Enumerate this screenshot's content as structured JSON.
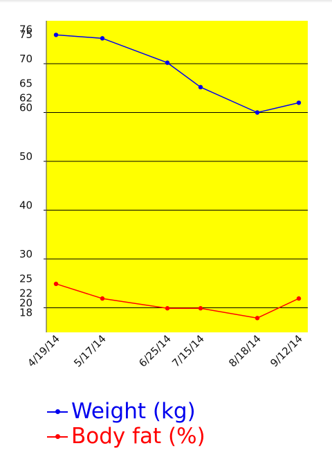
{
  "chart_data": {
    "type": "line",
    "x": [
      "4/19/14",
      "5/17/14",
      "6/25/14",
      "7/15/14",
      "8/18/14",
      "9/12/14"
    ],
    "series": [
      {
        "name": "Weight (kg)",
        "values": [
          75.9,
          75.2,
          70.2,
          65.2,
          60.0,
          62.0
        ],
        "color": "#0000ee"
      },
      {
        "name": "Body fat (%)",
        "values": [
          24.9,
          21.9,
          19.9,
          19.9,
          17.9,
          21.9
        ],
        "color": "#ff0000"
      }
    ],
    "y_tick_labels": [
      "76",
      "75",
      "70",
      "65",
      "62",
      "60",
      "50",
      "40",
      "30",
      "25",
      "22",
      "20",
      "18"
    ],
    "ylim": [
      16,
      78
    ],
    "grid": "horizontal",
    "background": "#ffff00",
    "legend_position": "bottom-left",
    "title": "",
    "xlabel": "",
    "ylabel": ""
  }
}
